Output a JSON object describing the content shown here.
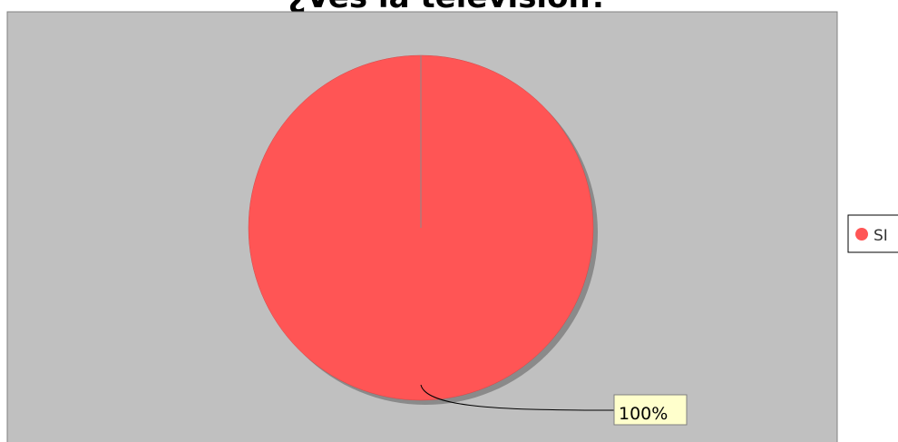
{
  "chart_data": {
    "type": "pie",
    "title": "¿Ves la televisión?",
    "categories": [
      "SI"
    ],
    "values": [
      100
    ],
    "slice_labels": [
      "100%"
    ],
    "legend_position": "right",
    "colors": {
      "slice": "#ff5555",
      "plot_background": "#c0c0c0",
      "label_background": "#ffffcc"
    }
  }
}
